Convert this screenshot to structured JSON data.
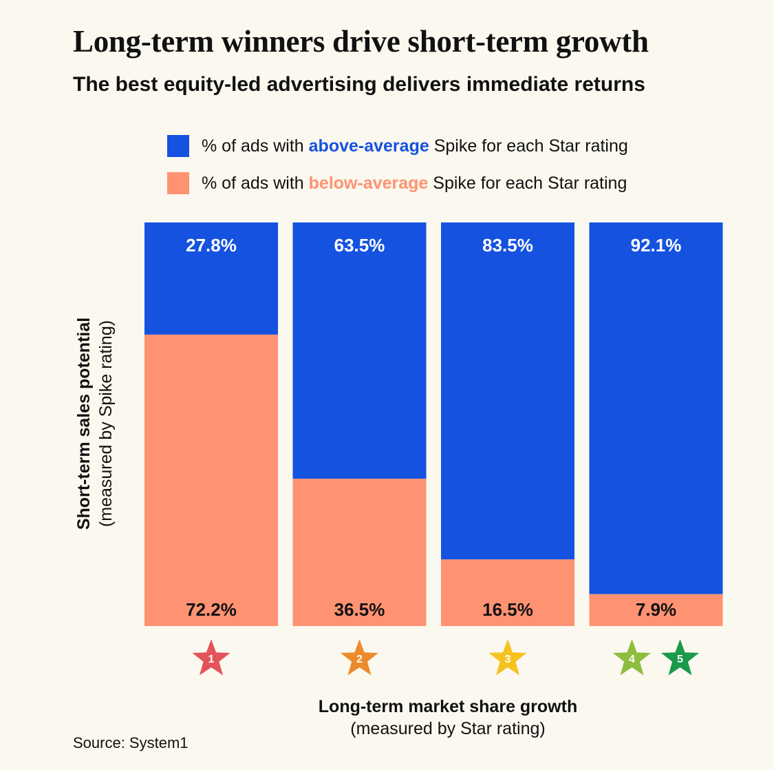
{
  "title": "Long-term winners drive short-term growth",
  "subtitle": "The best equity-led advertising delivers immediate returns",
  "legend": [
    {
      "prefix": "% of ads with ",
      "emphasis": "above-average",
      "suffix": " Spike for each Star rating",
      "color": "#1652e0"
    },
    {
      "prefix": "% of ads with ",
      "emphasis": "below-average",
      "suffix": " Spike for each Star rating",
      "color": "#ff9272"
    }
  ],
  "y_axis_label": {
    "line1": "Short-term sales potential",
    "line2": "(measured by Spike rating)"
  },
  "x_axis_label": {
    "line1": "Long-term market share growth",
    "line2": "(measured by Star rating)"
  },
  "source": "Source: System1",
  "chart_data": {
    "type": "bar",
    "stacked": true,
    "ylim": [
      0,
      100
    ],
    "categories": [
      "1",
      "2",
      "3",
      "4 5"
    ],
    "star_labels": [
      [
        "1"
      ],
      [
        "2"
      ],
      [
        "3"
      ],
      [
        "4",
        "5"
      ]
    ],
    "star_colors": {
      "1": "#e4535a",
      "2": "#ec8a2c",
      "3": "#f7c21d",
      "4": "#8dbd3c",
      "5": "#1a9a4a"
    },
    "series": [
      {
        "name": "% of ads with above-average Spike for each Star rating",
        "values": [
          27.8,
          63.5,
          83.5,
          92.1
        ],
        "labels": [
          "27.8%",
          "63.5%",
          "83.5%",
          "92.1%"
        ],
        "color": "#1652e0"
      },
      {
        "name": "% of ads with below-average Spike for each Star rating",
        "values": [
          72.2,
          36.5,
          16.5,
          7.9
        ],
        "labels": [
          "72.2%",
          "36.5%",
          "16.5%",
          "7.9%"
        ],
        "color": "#ff9272"
      }
    ]
  }
}
